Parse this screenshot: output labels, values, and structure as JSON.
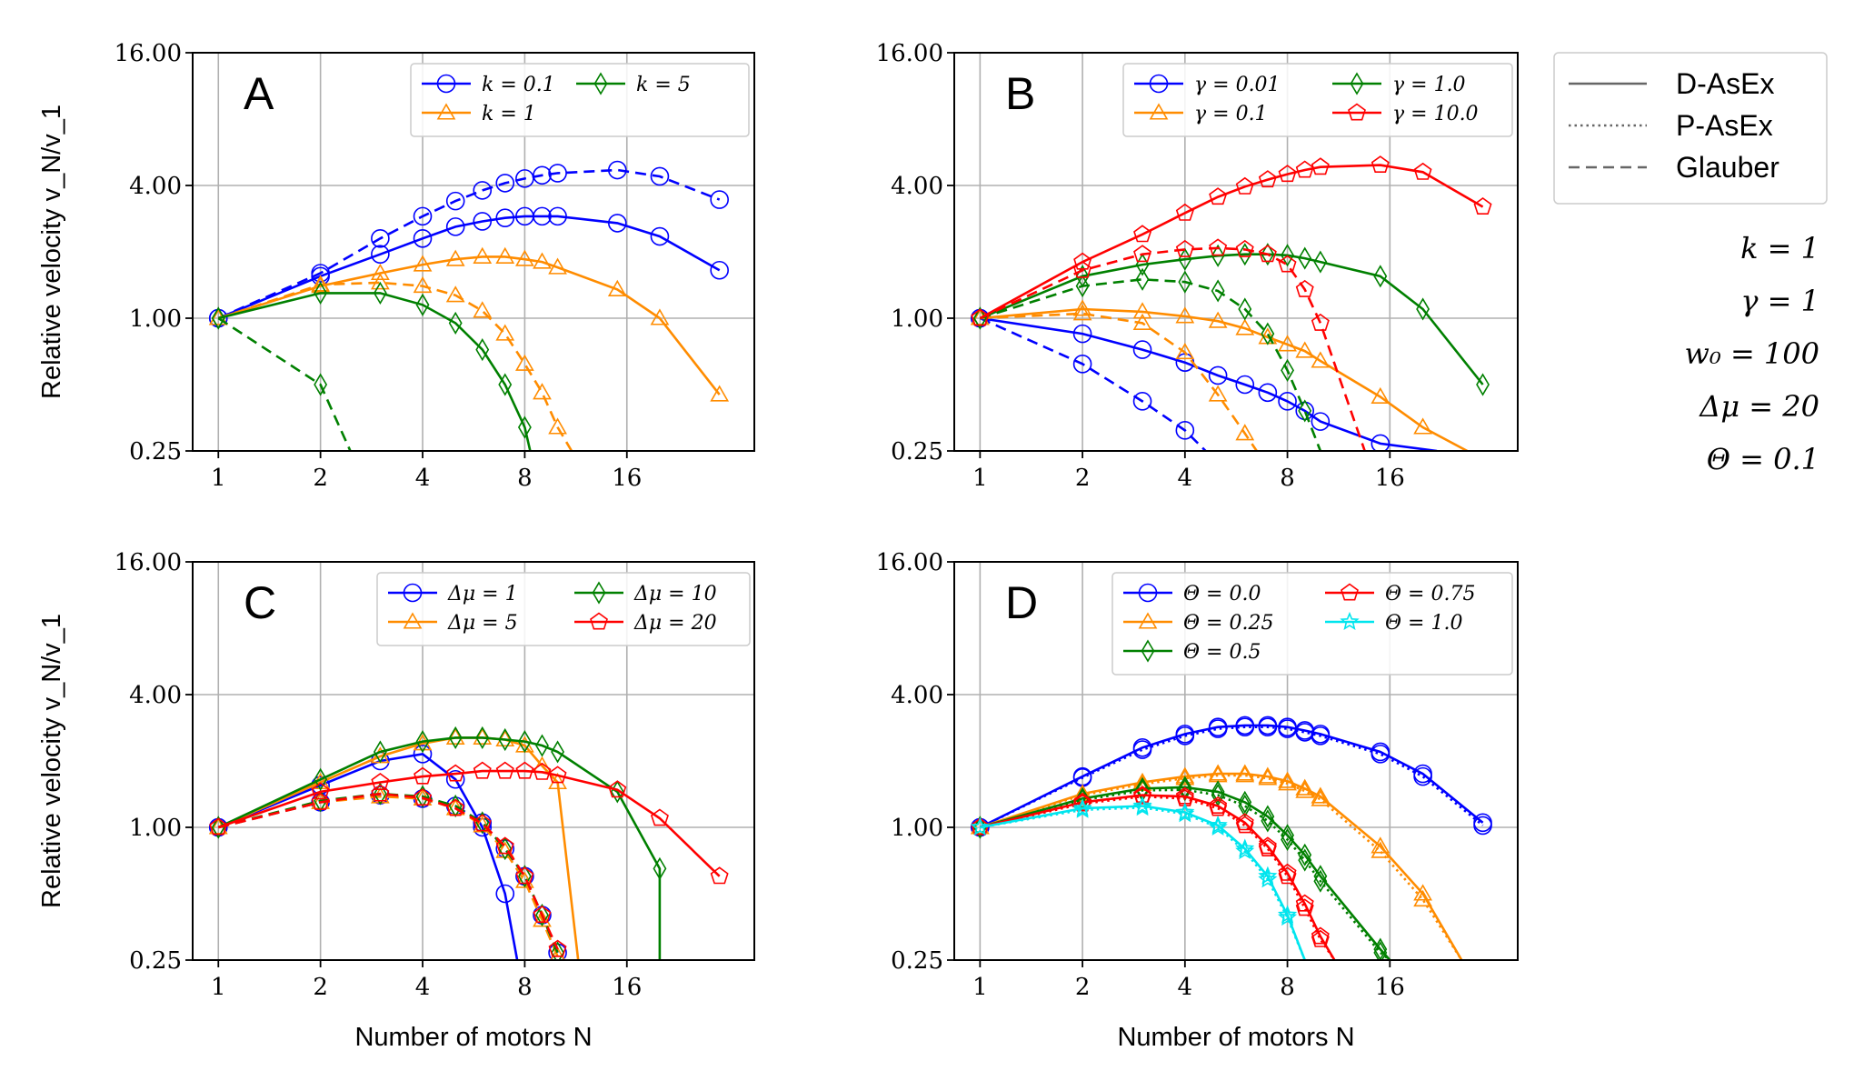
{
  "axes": {
    "xlabel": "Number of motors N",
    "ylabel": "Relative velocity v_N/v_1",
    "xticks": [
      1,
      2,
      4,
      8,
      16
    ],
    "yticks": [
      "0.25",
      "1.00",
      "4.00",
      "16.00"
    ],
    "xlim": [
      0.84,
      38
    ],
    "ylim": [
      0.25,
      16
    ]
  },
  "linestyle_legend": [
    {
      "label": "D-AsEx",
      "dash": "solid"
    },
    {
      "label": "P-AsEx",
      "dash": "dotted"
    },
    {
      "label": "Glauber",
      "dash": "dashed"
    }
  ],
  "parameters": [
    "k = 1",
    "γ = 1",
    "w₀ = 100",
    "Δμ = 20",
    "Θ = 0.1"
  ],
  "colors": {
    "blue": "#0000ff",
    "orange": "#ff8c00",
    "green": "#008000",
    "red": "#ff0000",
    "cyan": "#00e5ee"
  },
  "chart_data": [
    {
      "panel": "A",
      "type": "line",
      "xscale": "log2",
      "yscale": "log2",
      "grid": true,
      "legend_position": "top-right",
      "legend_columns": 2,
      "series": [
        {
          "name": "k = 0.1",
          "color": "#0000ff",
          "marker": "circle",
          "dash": "solid",
          "x": [
            1,
            2,
            3,
            4,
            5,
            6,
            7,
            8,
            9,
            10,
            15,
            20,
            30
          ],
          "y": [
            1.0,
            1.55,
            1.95,
            2.3,
            2.6,
            2.75,
            2.85,
            2.9,
            2.9,
            2.9,
            2.7,
            2.35,
            1.65
          ]
        },
        {
          "name": "",
          "color": "#0000ff",
          "marker": "circle",
          "dash": "dashed",
          "x": [
            1,
            2,
            3,
            4,
            5,
            6,
            7,
            8,
            9,
            10,
            15,
            20,
            30
          ],
          "y": [
            1.0,
            1.6,
            2.3,
            2.9,
            3.4,
            3.8,
            4.1,
            4.3,
            4.45,
            4.55,
            4.7,
            4.4,
            3.45
          ]
        },
        {
          "name": "k = 1",
          "color": "#ff8c00",
          "marker": "triangle",
          "dash": "solid",
          "x": [
            1,
            2,
            3,
            4,
            5,
            6,
            7,
            8,
            9,
            10,
            15,
            20,
            30
          ],
          "y": [
            1.0,
            1.4,
            1.6,
            1.75,
            1.85,
            1.9,
            1.9,
            1.85,
            1.8,
            1.7,
            1.35,
            1.0,
            0.45
          ]
        },
        {
          "name": "",
          "color": "#ff8c00",
          "marker": "triangle",
          "dash": "dashed",
          "x": [
            1,
            2,
            3,
            4,
            5,
            6,
            7,
            8,
            9,
            10,
            11
          ],
          "y": [
            1.0,
            1.42,
            1.45,
            1.4,
            1.27,
            1.08,
            0.85,
            0.62,
            0.46,
            0.32,
            0.25
          ]
        },
        {
          "name": "k = 5",
          "color": "#008000",
          "marker": "diamond",
          "dash": "solid",
          "x": [
            1,
            2,
            3,
            4,
            5,
            6,
            7,
            8,
            8.3
          ],
          "y": [
            1.0,
            1.3,
            1.3,
            1.15,
            0.95,
            0.72,
            0.5,
            0.32,
            0.25
          ]
        },
        {
          "name": "",
          "color": "#008000",
          "marker": "diamond",
          "dash": "dashed",
          "x": [
            1,
            2,
            2.45
          ],
          "y": [
            1.0,
            0.5,
            0.25
          ]
        }
      ]
    },
    {
      "panel": "B",
      "type": "line",
      "xscale": "log2",
      "yscale": "log2",
      "grid": true,
      "legend_position": "top-right",
      "legend_columns": 2,
      "series": [
        {
          "name": "γ = 0.01",
          "color": "#0000ff",
          "marker": "circle",
          "dash": "solid",
          "x": [
            1,
            2,
            3,
            4,
            5,
            6,
            7,
            8,
            9,
            10,
            15,
            22
          ],
          "y": [
            1.0,
            0.85,
            0.72,
            0.63,
            0.55,
            0.5,
            0.46,
            0.42,
            0.38,
            0.34,
            0.27,
            0.25
          ]
        },
        {
          "name": "",
          "color": "#0000ff",
          "marker": "circle",
          "dash": "dashed",
          "x": [
            1,
            2,
            3,
            4,
            4.6
          ],
          "y": [
            1.0,
            0.62,
            0.42,
            0.31,
            0.25
          ]
        },
        {
          "name": "γ = 0.1",
          "color": "#ff8c00",
          "marker": "triangle",
          "dash": "solid",
          "x": [
            1,
            2,
            3,
            4,
            5,
            6,
            7,
            8,
            9,
            10,
            15,
            20,
            27
          ],
          "y": [
            1.0,
            1.1,
            1.07,
            1.02,
            0.97,
            0.9,
            0.82,
            0.76,
            0.71,
            0.64,
            0.44,
            0.32,
            0.25
          ]
        },
        {
          "name": "",
          "color": "#ff8c00",
          "marker": "triangle",
          "dash": "dashed",
          "x": [
            1,
            2,
            3,
            4,
            5,
            6,
            6.5
          ],
          "y": [
            1.0,
            1.05,
            0.95,
            0.7,
            0.45,
            0.3,
            0.25
          ]
        },
        {
          "name": "γ = 1.0",
          "color": "#008000",
          "marker": "diamond",
          "dash": "solid",
          "x": [
            1,
            2,
            3,
            4,
            5,
            6,
            7,
            8,
            9,
            10,
            15,
            20,
            30
          ],
          "y": [
            1.0,
            1.55,
            1.75,
            1.85,
            1.92,
            1.95,
            1.95,
            1.93,
            1.87,
            1.8,
            1.55,
            1.1,
            0.5
          ]
        },
        {
          "name": "",
          "color": "#008000",
          "marker": "diamond",
          "dash": "dashed",
          "x": [
            1,
            2,
            3,
            4,
            5,
            6,
            7,
            8,
            9,
            10
          ],
          "y": [
            1.0,
            1.4,
            1.5,
            1.46,
            1.33,
            1.1,
            0.85,
            0.58,
            0.38,
            0.25
          ]
        },
        {
          "name": "γ = 10.0",
          "color": "#ff0000",
          "marker": "pentagon",
          "dash": "solid",
          "x": [
            1,
            2,
            3,
            4,
            5,
            6,
            7,
            8,
            9,
            10,
            15,
            20,
            30
          ],
          "y": [
            1.0,
            1.8,
            2.4,
            3.0,
            3.55,
            3.95,
            4.25,
            4.5,
            4.7,
            4.85,
            4.95,
            4.6,
            3.2
          ]
        },
        {
          "name": "",
          "color": "#ff0000",
          "marker": "pentagon",
          "dash": "dashed",
          "x": [
            1,
            2,
            3,
            4,
            5,
            6,
            7,
            8,
            9,
            10,
            13.5
          ],
          "y": [
            1.0,
            1.65,
            1.95,
            2.05,
            2.08,
            2.05,
            1.95,
            1.75,
            1.35,
            0.95,
            0.25
          ]
        }
      ]
    },
    {
      "panel": "C",
      "type": "line",
      "xscale": "log2",
      "yscale": "log2",
      "grid": true,
      "legend_position": "top-right",
      "legend_columns": 2,
      "series": [
        {
          "name": "Δμ = 1",
          "color": "#0000ff",
          "marker": "circle",
          "dash": "solid",
          "x": [
            1,
            2,
            3,
            4,
            5,
            6,
            7,
            7.6
          ],
          "y": [
            1.0,
            1.55,
            2.0,
            2.15,
            1.65,
            1.0,
            0.5,
            0.25
          ]
        },
        {
          "name": "",
          "color": "#0000ff",
          "marker": "circle",
          "dash": "dashed",
          "x": [
            1,
            2,
            3,
            4,
            5,
            6,
            7,
            8,
            9,
            10
          ],
          "y": [
            1.0,
            1.3,
            1.4,
            1.35,
            1.25,
            1.05,
            0.8,
            0.6,
            0.4,
            0.27
          ]
        },
        {
          "name": "Δμ = 5",
          "color": "#ff8c00",
          "marker": "triangle",
          "dash": "solid",
          "x": [
            1,
            2,
            3,
            4,
            5,
            6,
            7,
            8,
            9,
            10,
            11.5
          ],
          "y": [
            1.0,
            1.6,
            2.1,
            2.4,
            2.55,
            2.55,
            2.5,
            2.35,
            1.9,
            1.6,
            0.25
          ]
        },
        {
          "name": "",
          "color": "#ff8c00",
          "marker": "triangle",
          "dash": "dashed",
          "x": [
            1,
            2,
            3,
            4,
            5,
            6,
            7,
            8,
            9,
            10
          ],
          "y": [
            1.0,
            1.3,
            1.38,
            1.35,
            1.22,
            1.02,
            0.78,
            0.57,
            0.38,
            0.26
          ]
        },
        {
          "name": "Δμ = 10",
          "color": "#008000",
          "marker": "diamond",
          "dash": "solid",
          "x": [
            1,
            2,
            3,
            4,
            5,
            6,
            7,
            8,
            9,
            10,
            15,
            20,
            20
          ],
          "y": [
            1.0,
            1.65,
            2.2,
            2.45,
            2.55,
            2.55,
            2.5,
            2.45,
            2.35,
            2.2,
            1.45,
            0.65,
            0.25
          ]
        },
        {
          "name": "",
          "color": "#008000",
          "marker": "diamond",
          "dash": "dashed",
          "x": [
            1,
            2,
            3,
            4,
            5,
            6,
            7,
            8,
            9,
            10
          ],
          "y": [
            1.0,
            1.32,
            1.42,
            1.38,
            1.25,
            1.05,
            0.8,
            0.6,
            0.4,
            0.27
          ]
        },
        {
          "name": "Δμ = 20",
          "color": "#ff0000",
          "marker": "pentagon",
          "dash": "solid",
          "x": [
            1,
            2,
            3,
            4,
            5,
            6,
            7,
            8,
            9,
            10,
            15,
            20,
            30
          ],
          "y": [
            1.0,
            1.45,
            1.6,
            1.7,
            1.75,
            1.8,
            1.8,
            1.8,
            1.78,
            1.72,
            1.48,
            1.1,
            0.6
          ]
        },
        {
          "name": "",
          "color": "#ff0000",
          "marker": "pentagon",
          "dash": "dashed",
          "x": [
            1,
            2,
            3,
            4,
            5,
            6,
            7,
            8,
            9,
            10
          ],
          "y": [
            1.0,
            1.3,
            1.42,
            1.36,
            1.22,
            1.04,
            0.82,
            0.6,
            0.4,
            0.28
          ]
        }
      ]
    },
    {
      "panel": "D",
      "type": "line",
      "xscale": "log2",
      "yscale": "log2",
      "grid": true,
      "legend_position": "top-center",
      "legend_columns": 2,
      "series": [
        {
          "name": "Θ = 0.0",
          "color": "#0000ff",
          "marker": "circle",
          "dash": "solid",
          "x": [
            1,
            2,
            3,
            4,
            5,
            6,
            7,
            8,
            9,
            10,
            15,
            20,
            30
          ],
          "y": [
            1.0,
            1.7,
            2.3,
            2.65,
            2.85,
            2.9,
            2.9,
            2.85,
            2.75,
            2.65,
            2.2,
            1.75,
            1.05
          ]
        },
        {
          "name": "",
          "color": "#0000ff",
          "marker": "circle",
          "dash": "dotted",
          "x": [
            1,
            2,
            3,
            4,
            5,
            6,
            7,
            8,
            9,
            10,
            15,
            20,
            30
          ],
          "y": [
            1.0,
            1.68,
            2.25,
            2.6,
            2.8,
            2.85,
            2.85,
            2.8,
            2.7,
            2.6,
            2.15,
            1.7,
            1.02
          ]
        },
        {
          "name": "Θ = 0.25",
          "color": "#ff8c00",
          "marker": "triangle",
          "dash": "solid",
          "x": [
            1,
            2,
            3,
            4,
            5,
            6,
            7,
            8,
            9,
            10,
            15,
            20,
            26
          ],
          "y": [
            1.0,
            1.42,
            1.6,
            1.7,
            1.75,
            1.75,
            1.7,
            1.62,
            1.5,
            1.38,
            0.82,
            0.5,
            0.25
          ]
        },
        {
          "name": "",
          "color": "#ff8c00",
          "marker": "triangle",
          "dash": "dotted",
          "x": [
            1,
            2,
            3,
            4,
            5,
            6,
            7,
            8,
            9,
            10,
            15,
            20,
            26
          ],
          "y": [
            1.0,
            1.4,
            1.57,
            1.67,
            1.72,
            1.72,
            1.67,
            1.58,
            1.46,
            1.34,
            0.78,
            0.47,
            0.25
          ]
        },
        {
          "name": "Θ = 0.5",
          "color": "#008000",
          "marker": "diamond",
          "dash": "solid",
          "x": [
            1,
            2,
            3,
            4,
            5,
            6,
            7,
            8,
            9,
            10,
            15,
            16
          ],
          "y": [
            1.0,
            1.35,
            1.5,
            1.52,
            1.45,
            1.3,
            1.12,
            0.92,
            0.75,
            0.6,
            0.28,
            0.25
          ]
        },
        {
          "name": "",
          "color": "#008000",
          "marker": "diamond",
          "dash": "dotted",
          "x": [
            1,
            2,
            3,
            4,
            5,
            6,
            7,
            8,
            9,
            10,
            15,
            16
          ],
          "y": [
            1.0,
            1.33,
            1.47,
            1.48,
            1.4,
            1.25,
            1.07,
            0.88,
            0.71,
            0.57,
            0.27,
            0.25
          ]
        },
        {
          "name": "Θ = 0.75",
          "color": "#ff0000",
          "marker": "pentagon",
          "dash": "solid",
          "x": [
            1,
            2,
            3,
            4,
            5,
            6,
            7,
            8,
            9,
            10,
            11
          ],
          "y": [
            1.0,
            1.3,
            1.4,
            1.38,
            1.25,
            1.05,
            0.82,
            0.62,
            0.45,
            0.32,
            0.25
          ]
        },
        {
          "name": "",
          "color": "#ff0000",
          "marker": "pentagon",
          "dash": "dotted",
          "x": [
            1,
            2,
            3,
            4,
            5,
            6,
            7,
            8,
            9,
            10,
            11
          ],
          "y": [
            1.0,
            1.28,
            1.38,
            1.35,
            1.22,
            1.02,
            0.8,
            0.6,
            0.43,
            0.31,
            0.25
          ]
        },
        {
          "name": "Θ = 1.0",
          "color": "#00e5ee",
          "marker": "star",
          "dash": "solid",
          "x": [
            1,
            2,
            3,
            4,
            5,
            6,
            7,
            8,
            9
          ],
          "y": [
            1.0,
            1.22,
            1.25,
            1.17,
            1.02,
            0.8,
            0.6,
            0.4,
            0.25
          ]
        },
        {
          "name": "",
          "color": "#00e5ee",
          "marker": "star",
          "dash": "dotted",
          "x": [
            1,
            2,
            3,
            4,
            5,
            6,
            7,
            8,
            9
          ],
          "y": [
            1.0,
            1.2,
            1.23,
            1.15,
            1.0,
            0.78,
            0.58,
            0.39,
            0.25
          ]
        }
      ]
    }
  ]
}
